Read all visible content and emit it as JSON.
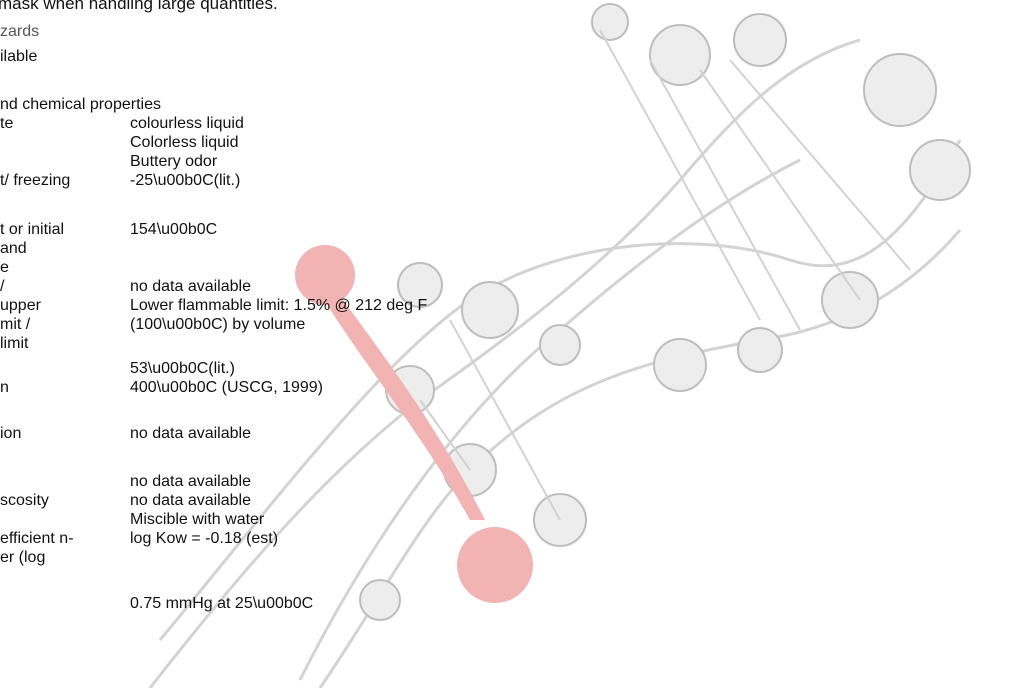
{
  "top_note": "mask when handling large quantities.",
  "hazards_label": "zards",
  "available_label": "ilable",
  "section_title": "nd chemical properties",
  "rows": [
    {
      "label": "te",
      "values": [
        "colourless liquid",
        "Colorless liquid",
        "Buttery odor"
      ]
    },
    {
      "label": "t/ freezing",
      "values": [
        "-25\\u00b0C(lit.)"
      ]
    },
    {
      "label": "t or initial",
      "label2": "and",
      "label3": "e",
      "values": [
        "154\\u00b0C"
      ]
    },
    {
      "label": "/",
      "values": [
        "no data available"
      ]
    },
    {
      "label": "upper",
      "label2": "mit /",
      "label3": "limit",
      "values": [
        "Lower flammable limit: 1.5% @ 212 deg F",
        "(100\\u00b0C) by volume"
      ]
    },
    {
      "label": "",
      "values": [
        "53\\u00b0C(lit.)"
      ]
    },
    {
      "label": "n",
      "values": [
        "400\\u00b0C (USCG, 1999)"
      ]
    },
    {
      "label": "ion",
      "values": [
        "no data available"
      ]
    },
    {
      "label": "",
      "values": [
        "no data available"
      ]
    },
    {
      "label": "scosity",
      "values": [
        "no data available"
      ]
    },
    {
      "label": "",
      "values": [
        "Miscible with water"
      ]
    },
    {
      "label": "efficient n-",
      "label2": "er (log",
      "values": [
        "log Kow = -0.18 (est)"
      ]
    },
    {
      "label": "",
      "values": [
        "0.75 mmHg at 25\\u00b0C"
      ]
    }
  ]
}
